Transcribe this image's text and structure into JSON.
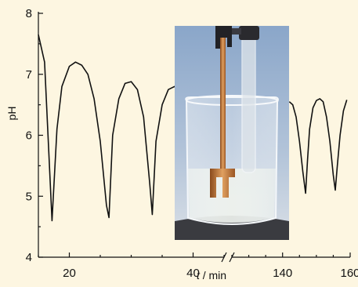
{
  "chart_data": {
    "type": "line",
    "title": "",
    "xlabel_italic": "t",
    "xlabel_rest": " / min",
    "ylabel": "pH",
    "ylim": [
      4,
      8
    ],
    "y_ticks": [
      4,
      5,
      6,
      7,
      8
    ],
    "x_break": true,
    "x_segments": [
      {
        "range": [
          15,
          45
        ],
        "ticks": [
          20,
          40
        ]
      },
      {
        "range": [
          125,
          160
        ],
        "ticks": [
          140,
          160
        ]
      }
    ],
    "grid": false,
    "series": [
      {
        "segment": 0,
        "x": [
          15.0,
          16.0,
          17.2,
          18.0,
          18.8,
          20.0,
          21.0,
          22.0,
          23.0,
          24.0,
          25.0,
          26.0,
          26.4,
          27.0,
          28.0,
          29.0,
          30.0,
          31.0,
          32.0,
          33.0,
          33.4,
          34.0,
          35.0,
          36.0,
          37.0,
          38.0,
          39.0,
          40.0,
          41.0,
          41.6,
          42.2,
          43.0,
          44.0
        ],
        "y": [
          7.65,
          7.2,
          4.6,
          6.1,
          6.8,
          7.13,
          7.2,
          7.15,
          7.0,
          6.6,
          5.9,
          4.85,
          4.65,
          6.0,
          6.6,
          6.85,
          6.88,
          6.75,
          6.3,
          5.2,
          4.7,
          5.9,
          6.5,
          6.75,
          6.8,
          6.7,
          6.4,
          5.9,
          5.1,
          4.75,
          5.8,
          6.3,
          6.6
        ]
      },
      {
        "segment": 1,
        "x": [
          142.0,
          143.0,
          144.0,
          145.0,
          146.0,
          146.8,
          147.4,
          148.0,
          149.0,
          150.0,
          151.0,
          152.0,
          153.0,
          154.0,
          155.0,
          155.6,
          156.2,
          157.0,
          158.0,
          159.0
        ],
        "y": [
          6.55,
          6.5,
          6.3,
          5.9,
          5.4,
          5.05,
          5.6,
          6.1,
          6.45,
          6.57,
          6.6,
          6.55,
          6.3,
          5.9,
          5.35,
          5.1,
          5.5,
          6.0,
          6.4,
          6.58
        ]
      }
    ]
  },
  "photo": {
    "description_icon": "beaker-with-electrodes-photo"
  }
}
